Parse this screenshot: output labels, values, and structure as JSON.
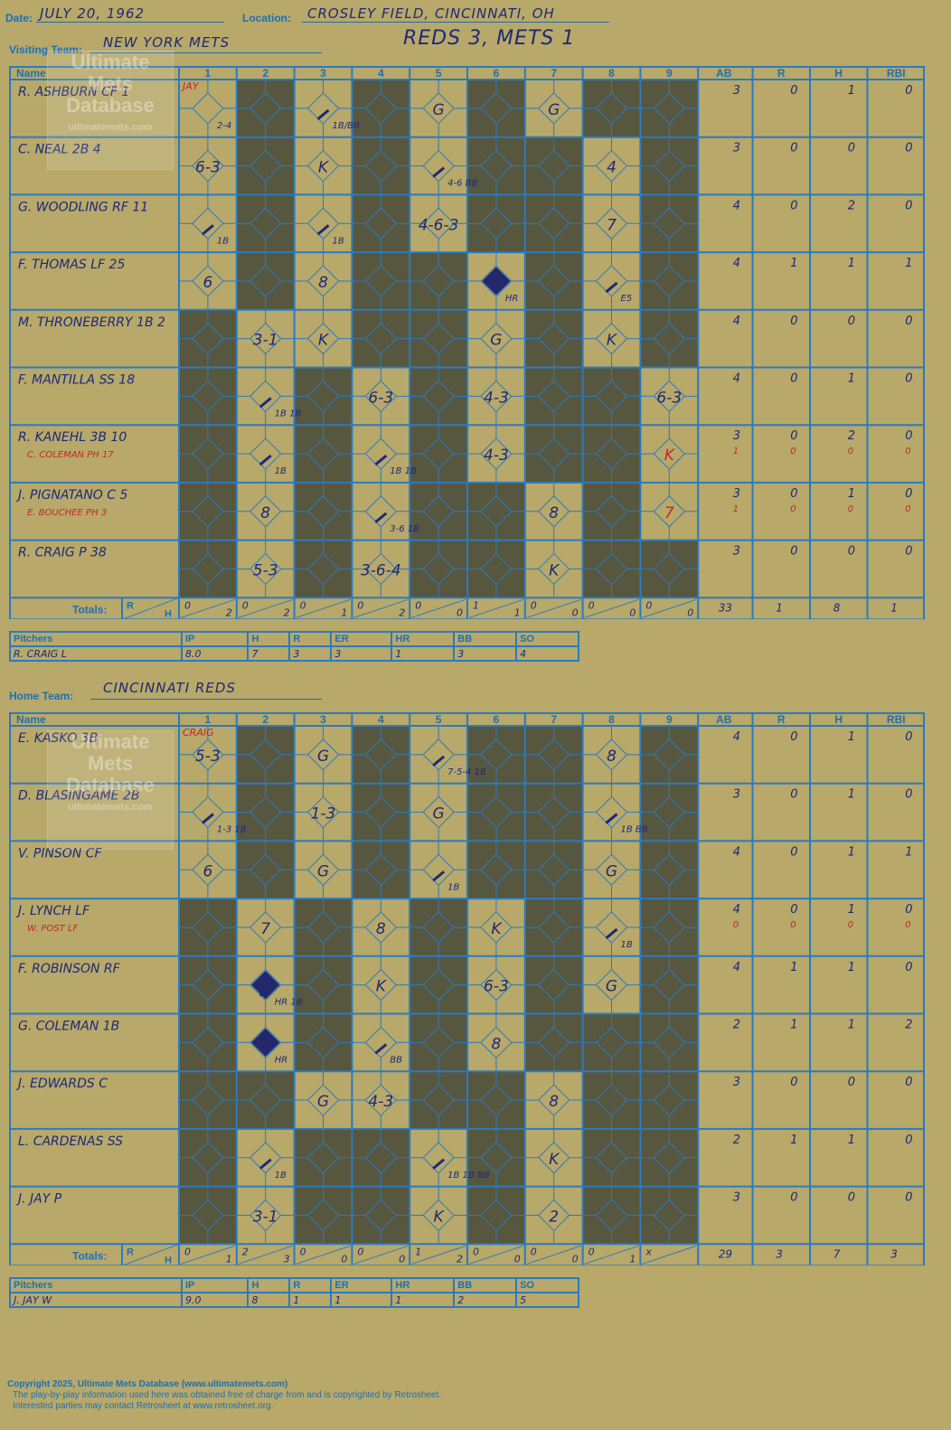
{
  "header": {
    "date_label": "Date:",
    "date": "JULY 20, 1962",
    "location_label": "Location:",
    "location": "CROSLEY FIELD, CINCINNATI, OH",
    "visiting_label": "Visiting Team:",
    "visiting_team": "NEW YORK METS",
    "result": "REDS 3, METS 1"
  },
  "columns": {
    "name": "Name",
    "innings": [
      "1",
      "2",
      "3",
      "4",
      "5",
      "6",
      "7",
      "8",
      "9"
    ],
    "stats": [
      "AB",
      "R",
      "H",
      "RBI"
    ],
    "totals": "Totals:",
    "r": "R",
    "h": "H"
  },
  "visitors": {
    "players": [
      {
        "name": "R. ASHBURN CF  1",
        "ab": "3",
        "r": "0",
        "h": "1",
        "rbi": "0"
      },
      {
        "name": "C. NEAL 2B  4",
        "ab": "3",
        "r": "0",
        "h": "0",
        "rbi": "0"
      },
      {
        "name": "G. WOODLING RF  11",
        "ab": "4",
        "r": "0",
        "h": "2",
        "rbi": "0"
      },
      {
        "name": "F. THOMAS LF  25",
        "ab": "4",
        "r": "1",
        "h": "1",
        "rbi": "1"
      },
      {
        "name": "M. THRONEBERRY 1B  2",
        "ab": "4",
        "r": "0",
        "h": "0",
        "rbi": "0"
      },
      {
        "name": "F. MANTILLA SS  18",
        "ab": "4",
        "r": "0",
        "h": "1",
        "rbi": "0"
      },
      {
        "name": "R. KANEHL 3B  10",
        "sub": "C. COLEMAN PH  17",
        "ab": "3",
        "r": "0",
        "h": "2",
        "rbi": "0",
        "sab": "1",
        "sr": "0",
        "sh": "0",
        "srbi": "0"
      },
      {
        "name": "J. PIGNATANO C  5",
        "sub": "E. BOUCHEE PH  3",
        "ab": "3",
        "r": "0",
        "h": "1",
        "rbi": "0",
        "sab": "1",
        "sr": "0",
        "sh": "0",
        "srbi": "0"
      },
      {
        "name": "R. CRAIG P  38",
        "ab": "3",
        "r": "0",
        "h": "0",
        "rbi": "0"
      }
    ],
    "active": [
      [
        1,
        3,
        5,
        7
      ],
      [
        1,
        3,
        5,
        8
      ],
      [
        1,
        3,
        5,
        8
      ],
      [
        1,
        3,
        6,
        8
      ],
      [
        2,
        3,
        6,
        8
      ],
      [
        2,
        4,
        6,
        9
      ],
      [
        2,
        4,
        6,
        9
      ],
      [
        2,
        4,
        7,
        9
      ],
      [
        2,
        4,
        7
      ]
    ],
    "plays": [
      [
        0,
        0,
        "2-4",
        1
      ],
      [
        0,
        2,
        "1B/BB",
        0
      ],
      [
        0,
        4,
        "G",
        0
      ],
      [
        0,
        6,
        "G",
        0
      ],
      [
        1,
        0,
        "6-3",
        0
      ],
      [
        1,
        2,
        "K",
        0
      ],
      [
        1,
        4,
        "4-6 BB",
        0
      ],
      [
        1,
        7,
        "4",
        0
      ],
      [
        2,
        0,
        "1B",
        0
      ],
      [
        2,
        2,
        "1B",
        0
      ],
      [
        2,
        4,
        "4-6-3",
        0
      ],
      [
        2,
        7,
        "7",
        0
      ],
      [
        3,
        0,
        "6",
        0
      ],
      [
        3,
        2,
        "8",
        0
      ],
      [
        3,
        5,
        "HR",
        0
      ],
      [
        3,
        7,
        "E5",
        0
      ],
      [
        4,
        1,
        "3-1",
        0
      ],
      [
        4,
        2,
        "K",
        0
      ],
      [
        4,
        5,
        "G",
        0
      ],
      [
        4,
        7,
        "K",
        0
      ],
      [
        5,
        1,
        "1B 1B",
        0
      ],
      [
        5,
        3,
        "6-3",
        0
      ],
      [
        5,
        5,
        "4-3",
        0
      ],
      [
        5,
        8,
        "6-3",
        0
      ],
      [
        6,
        1,
        "1B",
        0
      ],
      [
        6,
        3,
        "1B 1B",
        0
      ],
      [
        6,
        5,
        "4-3",
        0
      ],
      [
        6,
        8,
        "K",
        2
      ],
      [
        7,
        1,
        "8",
        0
      ],
      [
        7,
        3,
        "3-6 1B",
        0
      ],
      [
        7,
        6,
        "8",
        0
      ],
      [
        7,
        8,
        "7",
        2
      ],
      [
        8,
        1,
        "5-3",
        0
      ],
      [
        8,
        3,
        "3-6-4",
        0
      ],
      [
        8,
        6,
        "K",
        0
      ]
    ],
    "pitcher_note": "JAY",
    "totals_rh": [
      [
        "0",
        "2"
      ],
      [
        "0",
        "2"
      ],
      [
        "0",
        "1"
      ],
      [
        "0",
        "2"
      ],
      [
        "0",
        "0"
      ],
      [
        "1",
        "1"
      ],
      [
        "0",
        "0"
      ],
      [
        "0",
        "0"
      ],
      [
        "0",
        "0"
      ]
    ],
    "totals": {
      "ab": "33",
      "r": "1",
      "h": "8",
      "rbi": "1"
    }
  },
  "visitor_pitching": {
    "headers": [
      "Pitchers",
      "IP",
      "H",
      "R",
      "ER",
      "HR",
      "BB",
      "SO"
    ],
    "rows": [
      [
        "R. CRAIG  L",
        "8.0",
        "7",
        "3",
        "3",
        "1",
        "3",
        "4"
      ]
    ]
  },
  "home": {
    "label": "Home Team:",
    "team": "CINCINNATI REDS",
    "players": [
      {
        "name": "E. KASKO 3B",
        "ab": "4",
        "r": "0",
        "h": "1",
        "rbi": "0"
      },
      {
        "name": "D. BLASINGAME 2B",
        "ab": "3",
        "r": "0",
        "h": "1",
        "rbi": "0"
      },
      {
        "name": "V. PINSON CF",
        "ab": "4",
        "r": "0",
        "h": "1",
        "rbi": "1"
      },
      {
        "name": "J. LYNCH LF",
        "sub": "W. POST LF",
        "ab": "4",
        "r": "0",
        "h": "1",
        "rbi": "0",
        "sab": "0",
        "sr": "0",
        "sh": "0",
        "srbi": "0"
      },
      {
        "name": "F. ROBINSON RF",
        "ab": "4",
        "r": "1",
        "h": "1",
        "rbi": "0"
      },
      {
        "name": "G. COLEMAN 1B",
        "ab": "2",
        "r": "1",
        "h": "1",
        "rbi": "2"
      },
      {
        "name": "J. EDWARDS C",
        "ab": "3",
        "r": "0",
        "h": "0",
        "rbi": "0"
      },
      {
        "name": "L. CARDENAS SS",
        "ab": "2",
        "r": "1",
        "h": "1",
        "rbi": "0"
      },
      {
        "name": "J. JAY P",
        "ab": "3",
        "r": "0",
        "h": "0",
        "rbi": "0"
      }
    ],
    "active": [
      [
        1,
        3,
        5,
        8
      ],
      [
        1,
        3,
        5,
        8
      ],
      [
        1,
        3,
        5,
        8
      ],
      [
        2,
        4,
        6,
        8
      ],
      [
        2,
        4,
        6,
        8
      ],
      [
        2,
        4,
        6
      ],
      [
        3,
        4,
        7
      ],
      [
        2,
        5,
        7
      ],
      [
        2,
        5,
        7
      ]
    ],
    "plays": [
      [
        0,
        0,
        "5-3",
        0
      ],
      [
        0,
        2,
        "G",
        0
      ],
      [
        0,
        4,
        "7-5-4 1B",
        0
      ],
      [
        0,
        7,
        "8",
        0
      ],
      [
        1,
        0,
        "1-3 1B",
        0
      ],
      [
        1,
        2,
        "1-3",
        0
      ],
      [
        1,
        4,
        "G",
        0
      ],
      [
        1,
        7,
        "1B BB",
        0
      ],
      [
        2,
        0,
        "6",
        0
      ],
      [
        2,
        2,
        "G",
        0
      ],
      [
        2,
        4,
        "1B",
        0
      ],
      [
        2,
        7,
        "G",
        0
      ],
      [
        3,
        1,
        "7",
        0
      ],
      [
        3,
        3,
        "8",
        0
      ],
      [
        3,
        5,
        "K",
        0
      ],
      [
        3,
        7,
        "1B",
        0
      ],
      [
        4,
        1,
        "HR 1B",
        0
      ],
      [
        4,
        3,
        "K",
        0
      ],
      [
        4,
        5,
        "6-3",
        0
      ],
      [
        4,
        7,
        "G",
        0
      ],
      [
        5,
        1,
        "HR",
        0
      ],
      [
        5,
        3,
        "BB",
        0
      ],
      [
        5,
        5,
        "8",
        0
      ],
      [
        6,
        2,
        "G",
        0
      ],
      [
        6,
        3,
        "4-3",
        0
      ],
      [
        6,
        6,
        "8",
        0
      ],
      [
        7,
        1,
        "1B",
        0
      ],
      [
        7,
        4,
        "1B 1B BB",
        0
      ],
      [
        7,
        6,
        "K",
        0
      ],
      [
        8,
        1,
        "3-1",
        0
      ],
      [
        8,
        4,
        "K",
        0
      ],
      [
        8,
        6,
        "2",
        0
      ]
    ],
    "pitcher_note": "CRAIG",
    "totals_rh": [
      [
        "0",
        "1"
      ],
      [
        "2",
        "3"
      ],
      [
        "0",
        "0"
      ],
      [
        "0",
        "0"
      ],
      [
        "1",
        "2"
      ],
      [
        "0",
        "0"
      ],
      [
        "0",
        "0"
      ],
      [
        "0",
        "1"
      ],
      [
        "x",
        ""
      ]
    ],
    "totals": {
      "ab": "29",
      "r": "3",
      "h": "7",
      "rbi": "3"
    }
  },
  "home_pitching": {
    "headers": [
      "Pitchers",
      "IP",
      "H",
      "R",
      "ER",
      "HR",
      "BB",
      "SO"
    ],
    "rows": [
      [
        "J. JAY  W",
        "9.0",
        "8",
        "1",
        "1",
        "1",
        "2",
        "5"
      ]
    ]
  },
  "watermark": {
    "line1": "Ultimate",
    "line2": "Mets",
    "line3": "Database",
    "line4": "ultimatemets.com"
  },
  "footer": {
    "line1": "Copyright 2025, Ultimate Mets Database (www.ultimatemets.com)",
    "line2": "The play-by-play information used here was obtained free of charge from and is copyrighted by Retrosheet.",
    "line3": "Interested parties may contact Retrosheet at www.retrosheet.org."
  },
  "colors": {
    "paper": "#b8a869",
    "grid": "#2a7bbf",
    "dark": "#57563f",
    "ink": "#1c2a78",
    "red": "#c0282a"
  }
}
